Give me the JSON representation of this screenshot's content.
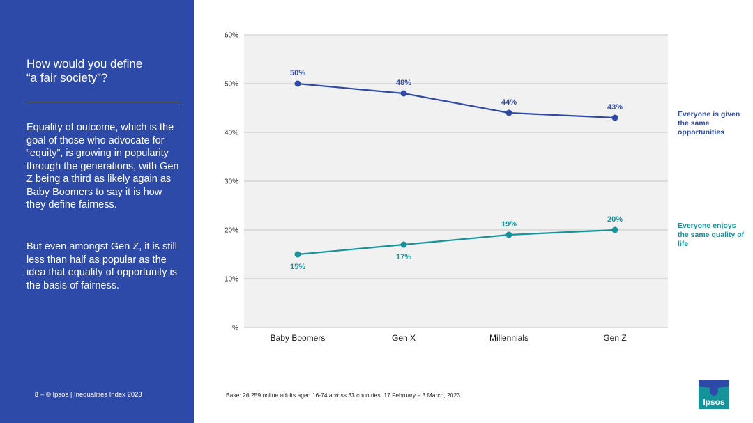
{
  "sidebar": {
    "title": "How would you define\n“a fair society”?",
    "paragraph1": "Equality of outcome, which is the goal of those who advocate for “equity”, is growing in popularity through the generations, with Gen Z being a third as likely again as Baby Boomers to say it is how they define fairness.",
    "paragraph2": "But even amongst Gen Z, it is still less than half as popular as the idea that equality of opportunity is the basis of fairness.",
    "page_number": "8",
    "footer": "–   © Ipsos | Inequalities Index 2023"
  },
  "base_note": "Base: 26,259 online adults aged 16-74 across 33 countries, 17 February – 3 March, 2023",
  "logo": {
    "text": "Ipsos"
  },
  "colors": {
    "sidebar": "#2d4aa8",
    "series1": "#2e4aa6",
    "series2": "#14939b",
    "plot_bg": "#f1f1f1"
  },
  "chart_data": {
    "type": "line",
    "categories": [
      "Baby Boomers",
      "Gen X",
      "Millennials",
      "Gen Z"
    ],
    "y_ticks": [
      "%",
      "10%",
      "20%",
      "30%",
      "40%",
      "50%",
      "60%"
    ],
    "ylim": [
      0,
      60
    ],
    "grid": true,
    "series": [
      {
        "name": "Everyone is given the same opportunities",
        "values": [
          50,
          48,
          44,
          43
        ],
        "labels": [
          "50%",
          "48%",
          "44%",
          "43%"
        ]
      },
      {
        "name": "Everyone enjoys the same quality of life",
        "values": [
          15,
          17,
          19,
          20
        ],
        "labels": [
          "15%",
          "17%",
          "19%",
          "20%"
        ]
      }
    ]
  }
}
